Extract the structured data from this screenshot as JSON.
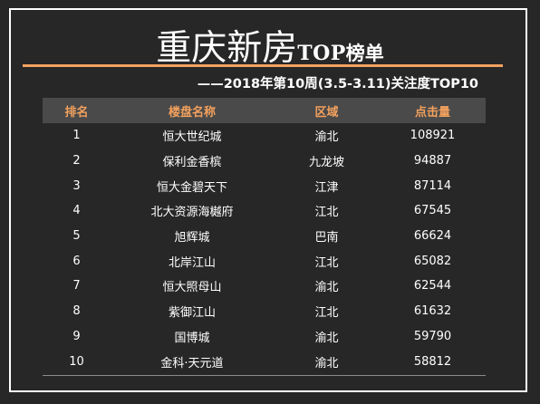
{
  "header": {
    "title_main": "重庆新房",
    "title_top": "TOP",
    "title_suffix": "榜单",
    "subtitle": "——2018年第10周(3.5-3.11)关注度TOP10"
  },
  "table": {
    "columns": [
      "排名",
      "楼盘名称",
      "区域",
      "点击量"
    ],
    "rows": [
      {
        "rank": "1",
        "name": "恒大世纪城",
        "area": "渝北",
        "clicks": "108921"
      },
      {
        "rank": "2",
        "name": "保利金香槟",
        "area": "九龙坡",
        "clicks": "94887"
      },
      {
        "rank": "3",
        "name": "恒大金碧天下",
        "area": "江津",
        "clicks": "87114"
      },
      {
        "rank": "4",
        "name": "北大资源海樾府",
        "area": "江北",
        "clicks": "67545"
      },
      {
        "rank": "5",
        "name": "旭辉城",
        "area": "巴南",
        "clicks": "66624"
      },
      {
        "rank": "6",
        "name": "北岸江山",
        "area": "江北",
        "clicks": "65082"
      },
      {
        "rank": "7",
        "name": "恒大照母山",
        "area": "渝北",
        "clicks": "62544"
      },
      {
        "rank": "8",
        "name": "紫御江山",
        "area": "江北",
        "clicks": "61632"
      },
      {
        "rank": "9",
        "name": "国博城",
        "area": "渝北",
        "clicks": "59790"
      },
      {
        "rank": "10",
        "name": "金科·天元道",
        "area": "渝北",
        "clicks": "58812"
      }
    ]
  },
  "colors": {
    "background": "#272727",
    "accent": "#f3a15e",
    "header_row": "#4a4a4a",
    "text": "#ffffff"
  }
}
